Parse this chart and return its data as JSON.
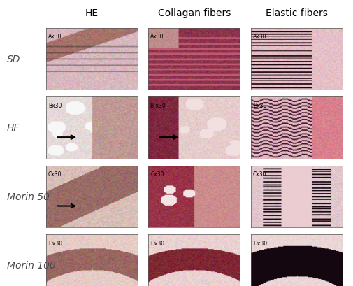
{
  "title": "",
  "col_headers": [
    "HE",
    "Collagan fibers",
    "Elastic fibers"
  ],
  "row_labels": [
    "SD",
    "HF",
    "Morin 50",
    "Morin 100"
  ],
  "panel_labels": [
    [
      "Ax30",
      "Ax30",
      "Ax30"
    ],
    [
      "Bx30",
      "B x30",
      "Bx30"
    ],
    [
      "Cx30",
      "Cx30",
      "Cx30"
    ],
    [
      "Dx30",
      "Dx30",
      "Dx30"
    ]
  ],
  "arrows": [
    [
      false,
      false,
      false
    ],
    [
      true,
      true,
      false
    ],
    [
      true,
      false,
      false
    ],
    [
      false,
      false,
      false
    ]
  ],
  "bg_color": "#ffffff",
  "col_header_color": "#000000",
  "row_label_color": "#4a4a4a",
  "col_header_fontsize": 10,
  "row_label_fontsize": 10,
  "panel_label_fontsize": 7,
  "fig_width": 5.05,
  "fig_height": 4.1,
  "dpi": 100
}
